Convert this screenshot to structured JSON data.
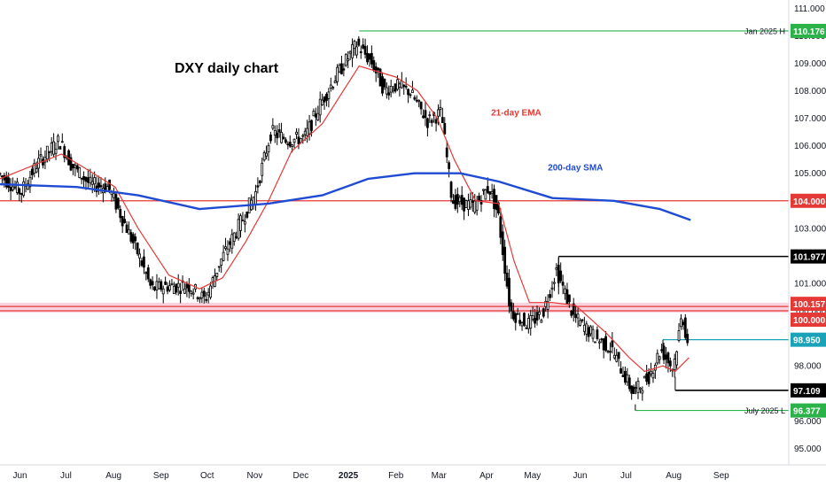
{
  "chart_data": {
    "type": "candlestick",
    "title": "DXY daily chart",
    "y_ticks": [
      "95.000",
      "96.000",
      "97.000",
      "98.000",
      "99.000",
      "100.000",
      "101.000",
      "102.000",
      "103.000",
      "104.000",
      "105.000",
      "106.000",
      "107.000",
      "108.000",
      "109.000",
      "110.000",
      "111.000"
    ],
    "ylim": [
      94.4,
      111.3
    ],
    "x_ticks": [
      {
        "label": "Jun",
        "t": 13
      },
      {
        "label": "Jul",
        "t": 43
      },
      {
        "label": "Aug",
        "t": 74
      },
      {
        "label": "Sep",
        "t": 105
      },
      {
        "label": "Oct",
        "t": 135
      },
      {
        "label": "Nov",
        "t": 166
      },
      {
        "label": "Dec",
        "t": 196
      },
      {
        "label": "2025",
        "t": 227,
        "bold": true
      },
      {
        "label": "Feb",
        "t": 258
      },
      {
        "label": "Mar",
        "t": 286
      },
      {
        "label": "Apr",
        "t": 317
      },
      {
        "label": "May",
        "t": 347
      },
      {
        "label": "Jun",
        "t": 378
      },
      {
        "label": "Jul",
        "t": 408
      },
      {
        "label": "Aug",
        "t": 439
      },
      {
        "label": "Sep",
        "t": 470
      }
    ],
    "x_axis_span": [
      0,
      514
    ],
    "price_path": [
      [
        0,
        105.0
      ],
      [
        15,
        104.3
      ],
      [
        25,
        105.3
      ],
      [
        40,
        106.2
      ],
      [
        48,
        105.3
      ],
      [
        60,
        104.6
      ],
      [
        72,
        104.5
      ],
      [
        80,
        103.5
      ],
      [
        92,
        102.0
      ],
      [
        100,
        100.8
      ],
      [
        110,
        100.9
      ],
      [
        125,
        100.9
      ],
      [
        135,
        100.4
      ],
      [
        145,
        101.8
      ],
      [
        160,
        103.4
      ],
      [
        168,
        104.3
      ],
      [
        178,
        106.5
      ],
      [
        190,
        106.2
      ],
      [
        200,
        106.3
      ],
      [
        210,
        107.5
      ],
      [
        220,
        108.5
      ],
      [
        234,
        109.7
      ],
      [
        244,
        109.0
      ],
      [
        252,
        108.0
      ],
      [
        258,
        108.2
      ],
      [
        268,
        108.0
      ],
      [
        280,
        106.9
      ],
      [
        289,
        107.2
      ],
      [
        296,
        104.0
      ],
      [
        310,
        103.8
      ],
      [
        320,
        104.5
      ],
      [
        326,
        103.5
      ],
      [
        334,
        100.0
      ],
      [
        345,
        99.5
      ],
      [
        355,
        99.9
      ],
      [
        364,
        101.5
      ],
      [
        375,
        99.8
      ],
      [
        390,
        99.0
      ],
      [
        400,
        98.6
      ],
      [
        414,
        97.0
      ],
      [
        424,
        97.6
      ],
      [
        432,
        98.6
      ],
      [
        440,
        97.9
      ],
      [
        446,
        99.9
      ],
      [
        449,
        98.9
      ]
    ],
    "ema21_path": [
      [
        0,
        104.8
      ],
      [
        40,
        105.7
      ],
      [
        55,
        105.2
      ],
      [
        75,
        104.5
      ],
      [
        90,
        103.0
      ],
      [
        110,
        101.3
      ],
      [
        130,
        100.8
      ],
      [
        145,
        101.2
      ],
      [
        160,
        102.5
      ],
      [
        175,
        104.0
      ],
      [
        190,
        105.8
      ],
      [
        210,
        106.8
      ],
      [
        234,
        108.9
      ],
      [
        258,
        108.5
      ],
      [
        272,
        108.0
      ],
      [
        285,
        107.0
      ],
      [
        296,
        105.5
      ],
      [
        310,
        104.0
      ],
      [
        325,
        103.9
      ],
      [
        335,
        101.8
      ],
      [
        345,
        100.3
      ],
      [
        360,
        100.3
      ],
      [
        375,
        100.2
      ],
      [
        395,
        99.2
      ],
      [
        410,
        98.3
      ],
      [
        420,
        97.8
      ],
      [
        432,
        98.0
      ],
      [
        440,
        97.8
      ],
      [
        449,
        98.3
      ]
    ],
    "sma200_path": [
      [
        0,
        104.6
      ],
      [
        50,
        104.5
      ],
      [
        90,
        104.2
      ],
      [
        130,
        103.7
      ],
      [
        175,
        103.9
      ],
      [
        210,
        104.2
      ],
      [
        240,
        104.8
      ],
      [
        270,
        105.0
      ],
      [
        300,
        105.0
      ],
      [
        325,
        104.7
      ],
      [
        360,
        104.1
      ],
      [
        400,
        104.0
      ],
      [
        430,
        103.7
      ],
      [
        450,
        103.3
      ]
    ],
    "series": [
      {
        "name": "21-day EMA",
        "color": "#e53935"
      },
      {
        "name": "200-day SMA",
        "color": "#1e4bd2"
      }
    ],
    "levels": [
      {
        "value": 110.176,
        "label": "110.176",
        "note": "Jan 2025 H",
        "from_t": 234,
        "color": "#2bb34a",
        "badge_bg": "#2bb34a"
      },
      {
        "value": 104.0,
        "label": "104.000",
        "from_t": 0,
        "color": "#e53935",
        "badge_bg": "#e53935"
      },
      {
        "value": 101.977,
        "label": "101.977",
        "from_t": 364,
        "color": "#000000",
        "badge_bg": "#000000"
      },
      {
        "value": 100.157,
        "label": "100.157",
        "from_t": 0,
        "color": "#e53935",
        "badge_bg": "#e53935"
      },
      {
        "value": 100.0,
        "label": "100.000",
        "from_t": 0,
        "color": "#e53935",
        "badge_bg": "#e53935"
      },
      {
        "value": 98.95,
        "label": "98.950",
        "from_t": 432,
        "color": "#1aa3b8",
        "badge_bg": "#1aa3b8"
      },
      {
        "value": 97.109,
        "label": "97.109",
        "from_t": 440,
        "color": "#000000",
        "badge_bg": "#000000"
      },
      {
        "value": 96.377,
        "label": "96.377",
        "note": "July 2025 L",
        "from_t": 414,
        "color": "#2bb34a",
        "badge_bg": "#2bb34a"
      }
    ],
    "support_zone": {
      "from": 100.0,
      "to": 100.23,
      "color": "#f3b6c9"
    },
    "annotations": [
      {
        "text": "21-day EMA",
        "color": "#e53935",
        "t": 320,
        "value": 107.1
      },
      {
        "text": "200-day SMA",
        "color": "#1e4bd2",
        "t": 357,
        "value": 105.1
      }
    ],
    "grid": false,
    "bull_color": "#ffffff",
    "bear_color": "#000000"
  }
}
